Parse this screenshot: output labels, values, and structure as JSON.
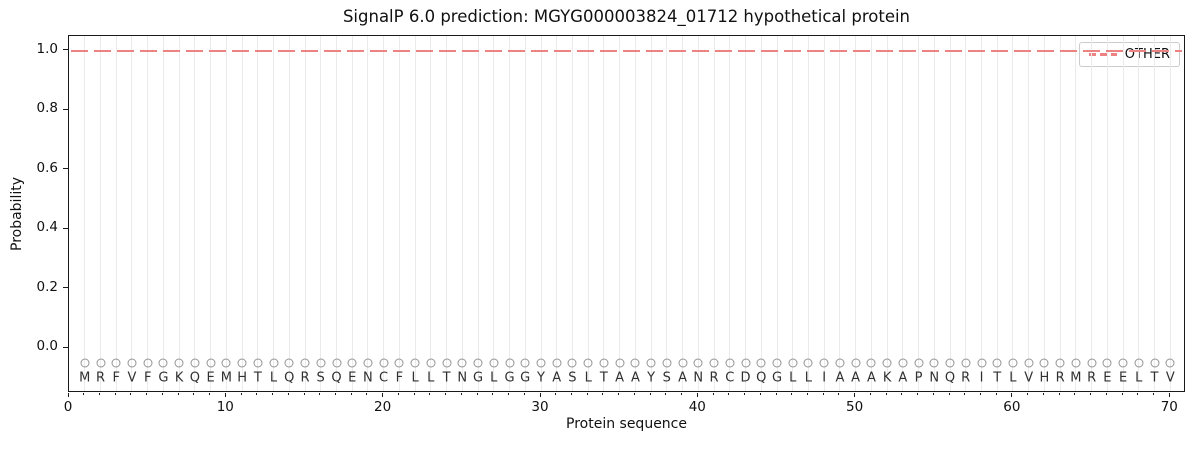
{
  "figure": {
    "kind": "SignalP 6.0 probability plot"
  },
  "chart_data": {
    "type": "line",
    "title": "SignalP 6.0 prediction: MGYG000003824_01712 hypothetical protein",
    "xlabel": "Protein sequence",
    "ylabel": "Probability",
    "xlim": [
      0,
      71
    ],
    "ylim": [
      -0.15,
      1.05
    ],
    "x_ticks": [
      0,
      10,
      20,
      30,
      40,
      50,
      60,
      70
    ],
    "y_ticks": [
      0.0,
      0.2,
      0.4,
      0.6,
      0.8,
      1.0
    ],
    "grid": "vertical gridline at every residue position 1-70",
    "legend": {
      "position": "upper right",
      "entries": [
        {
          "label": "OTHER",
          "color": "#ed8282",
          "linestyle": "dashed"
        }
      ]
    },
    "series": [
      {
        "name": "OTHER",
        "color": "#ed8282",
        "linestyle": "dashed",
        "x": [
          1,
          2,
          3,
          4,
          5,
          6,
          7,
          8,
          9,
          10,
          11,
          12,
          13,
          14,
          15,
          16,
          17,
          18,
          19,
          20,
          21,
          22,
          23,
          24,
          25,
          26,
          27,
          28,
          29,
          30,
          31,
          32,
          33,
          34,
          35,
          36,
          37,
          38,
          39,
          40,
          41,
          42,
          43,
          44,
          45,
          46,
          47,
          48,
          49,
          50,
          51,
          52,
          53,
          54,
          55,
          56,
          57,
          58,
          59,
          60,
          61,
          62,
          63,
          64,
          65,
          66,
          67,
          68,
          69,
          70
        ],
        "y": [
          1.0,
          1.0,
          1.0,
          1.0,
          1.0,
          1.0,
          1.0,
          1.0,
          1.0,
          1.0,
          1.0,
          1.0,
          1.0,
          1.0,
          1.0,
          1.0,
          1.0,
          1.0,
          1.0,
          1.0,
          1.0,
          1.0,
          1.0,
          1.0,
          1.0,
          1.0,
          1.0,
          1.0,
          1.0,
          1.0,
          1.0,
          1.0,
          1.0,
          1.0,
          1.0,
          1.0,
          1.0,
          1.0,
          1.0,
          1.0,
          1.0,
          1.0,
          1.0,
          1.0,
          1.0,
          1.0,
          1.0,
          1.0,
          1.0,
          1.0,
          1.0,
          1.0,
          1.0,
          1.0,
          1.0,
          1.0,
          1.0,
          1.0,
          1.0,
          1.0,
          1.0,
          1.0,
          1.0,
          1.0,
          1.0,
          1.0,
          1.0,
          1.0,
          1.0,
          1.0
        ]
      }
    ],
    "sequence": {
      "residues": "MRFVFGKQEMHTLQRSQENCFLLTNGLGGYASLTAAYSANRCDQGLLIAAAKAPNQRITLVHRMREELTV",
      "marker_symbol": "O",
      "marker_y": -0.05,
      "letter_y": -0.1
    }
  },
  "colors": {
    "other_line": "#ed8282",
    "grid": "#ebebeb",
    "marker_circle": "#949494",
    "residue_letters": "#303030",
    "axis": "#1a1a1a",
    "legend_border": "#cccccc",
    "background": "#ffffff"
  }
}
